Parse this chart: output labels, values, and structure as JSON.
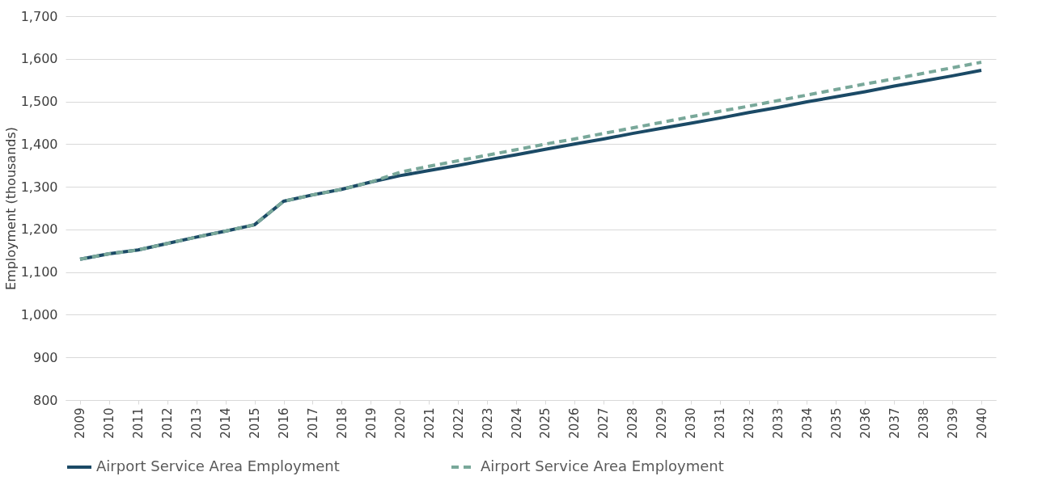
{
  "chart_data": {
    "type": "line",
    "ylabel": "Employment (thousands)",
    "categories": [
      "2009",
      "2010",
      "2011",
      "2012",
      "2013",
      "2014",
      "2015",
      "2016",
      "2017",
      "2018",
      "2019",
      "2020",
      "2021",
      "2022",
      "2023",
      "2024",
      "2025",
      "2026",
      "2027",
      "2028",
      "2029",
      "2030",
      "2031",
      "2032",
      "2033",
      "2034",
      "2035",
      "2036",
      "2037",
      "2038",
      "2039",
      "2040"
    ],
    "series": [
      {
        "name": "Airport Service Area Employment",
        "color": "#1b4a66",
        "line_style": "solid",
        "values": [
          1130,
          1143,
          1152,
          1167,
          1182,
          1196,
          1211,
          1266,
          1281,
          1294,
          1311,
          1326,
          1338,
          1350,
          1363,
          1375,
          1388,
          1400,
          1412,
          1425,
          1437,
          1449,
          1461,
          1474,
          1486,
          1499,
          1511,
          1523,
          1536,
          1548,
          1560,
          1573
        ]
      },
      {
        "name": "Airport Service Area Employment",
        "color": "#79a89a",
        "line_style": "dashed",
        "values": [
          1130,
          1143,
          1152,
          1167,
          1182,
          1196,
          1211,
          1266,
          1281,
          1294,
          1311,
          1334,
          1348,
          1361,
          1374,
          1387,
          1400,
          1412,
          1425,
          1438,
          1451,
          1464,
          1477,
          1489,
          1502,
          1515,
          1528,
          1541,
          1553,
          1566,
          1579,
          1592
        ]
      }
    ],
    "ylim": [
      800,
      1700
    ],
    "yticks": [
      {
        "value": 800,
        "label": "800"
      },
      {
        "value": 900,
        "label": "900"
      },
      {
        "value": 1000,
        "label": "1,000"
      },
      {
        "value": 1100,
        "label": "1,100"
      },
      {
        "value": 1200,
        "label": "1,200"
      },
      {
        "value": 1300,
        "label": "1,300"
      },
      {
        "value": 1400,
        "label": "1,400"
      },
      {
        "value": 1500,
        "label": "1,500"
      },
      {
        "value": 1600,
        "label": "1,600"
      },
      {
        "value": 1700,
        "label": "1,700"
      }
    ],
    "grid": "y",
    "legend": "bottom"
  }
}
